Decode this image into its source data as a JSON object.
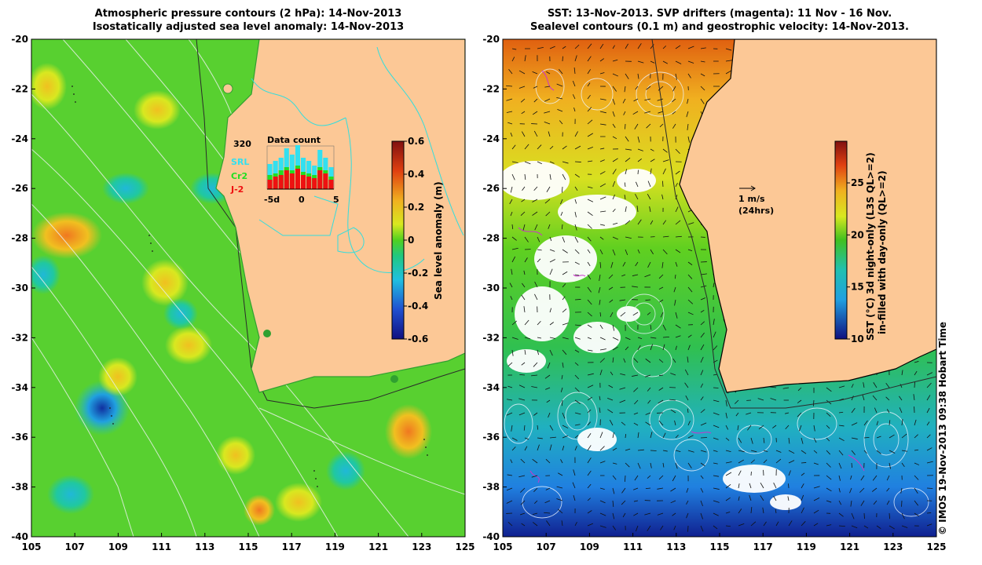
{
  "left_panel": {
    "title_line1": "Atmospheric pressure contours (2 hPa): 14-Nov-2013",
    "title_line2": "Isostatically adjusted sea level anomaly: 14-Nov-2013",
    "colorbar": {
      "label": "Sea level anomaly (m)",
      "ticks": [
        "0.6",
        "0.4",
        "0.2",
        "0",
        "-0.2",
        "-0.4",
        "-0.6"
      ],
      "range": [
        -0.6,
        0.6
      ]
    },
    "data_count": {
      "title": "Data count",
      "max_label": "320",
      "legend": [
        {
          "name": "SRL",
          "color": "#33e0f0"
        },
        {
          "name": "Cr2",
          "color": "#22dd22"
        },
        {
          "name": "J-2",
          "color": "#ee1111"
        }
      ],
      "xticks": [
        "-5d",
        "0",
        "5"
      ]
    }
  },
  "right_panel": {
    "title_line1": "SST: 13-Nov-2013. SVP drifters (magenta): 11 Nov - 16 Nov.",
    "title_line2": "Sealevel contours (0.1 m) and geostrophic velocity: 14-Nov-2013.",
    "colorbar": {
      "label_line1": "SST (°C) 3d night-only (L3S QL>=2)",
      "label_line2": "in-filled with day-only (QL>=2)",
      "ticks": [
        "25",
        "20",
        "15",
        "10"
      ],
      "range": [
        10,
        29
      ]
    },
    "velocity_key": {
      "label": "1 m/s",
      "sublabel": "(24hrs)"
    }
  },
  "axes": {
    "lon_ticks": [
      "105",
      "107",
      "109",
      "111",
      "113",
      "115",
      "117",
      "119",
      "121",
      "123",
      "125"
    ],
    "lat_ticks": [
      "-20",
      "-22",
      "-24",
      "-26",
      "-28",
      "-30",
      "-32",
      "-34",
      "-36",
      "-38",
      "-40"
    ],
    "lon_range": [
      105,
      125
    ],
    "lat_range": [
      -40,
      -20
    ]
  },
  "credit": "© IMOS 19-Nov-2013 09:38 Hobart Time",
  "colors": {
    "land": "#fcc896",
    "coast_contour": "#33dddd"
  }
}
